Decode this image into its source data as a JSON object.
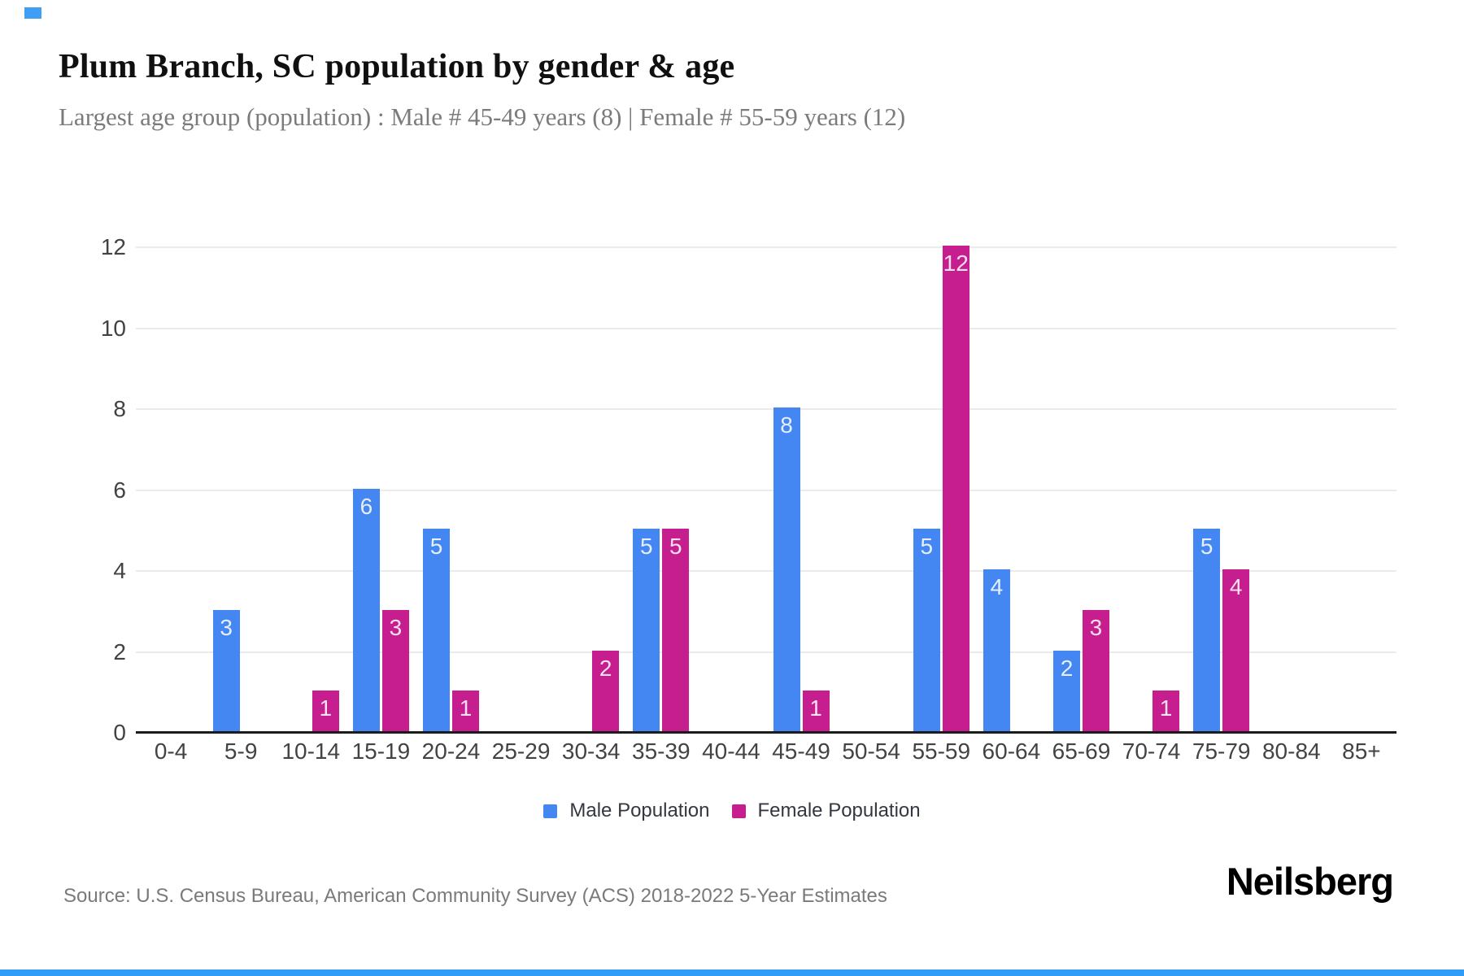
{
  "page": {
    "title": "Plum Branch, SC population by gender & age",
    "subtitle": "Largest age group (population) : Male # 45-49 years (8) | Female # 55-59 years (12)",
    "source": "Source: U.S. Census Bureau, American Community Survey (ACS) 2018-2022 5-Year Estimates",
    "brand": "Neilsberg"
  },
  "chart_data": {
    "type": "bar",
    "title": "Plum Branch, SC population by gender & age",
    "subtitle": "Largest age group (population) : Male # 45-49 years (8) | Female # 55-59 years (12)",
    "categories": [
      "0-4",
      "5-9",
      "10-14",
      "15-19",
      "20-24",
      "25-29",
      "30-34",
      "35-39",
      "40-44",
      "45-49",
      "50-54",
      "55-59",
      "60-64",
      "65-69",
      "70-74",
      "75-79",
      "80-84",
      "85+"
    ],
    "series": [
      {
        "name": "Male Population",
        "color": "#4486f2",
        "values": [
          0,
          3,
          0,
          6,
          5,
          0,
          0,
          5,
          0,
          8,
          0,
          5,
          4,
          2,
          0,
          5,
          0,
          0
        ]
      },
      {
        "name": "Female Population",
        "color": "#c61d8f",
        "values": [
          0,
          0,
          1,
          3,
          1,
          0,
          2,
          5,
          0,
          1,
          0,
          12,
          0,
          3,
          1,
          4,
          0,
          0
        ]
      }
    ],
    "xlabel": "",
    "ylabel": "",
    "ylim": [
      0,
      12
    ],
    "yticks": [
      0,
      2,
      4,
      6,
      8,
      10,
      12
    ],
    "grid": "horizontal",
    "legend_position": "bottom",
    "value_labels": "inside bar top, white, shown only for non-zero bars",
    "colors": {
      "male": "#4486f2",
      "female": "#c61d8f",
      "gridline": "#ebebeb",
      "axis_line": "#1c1c1c",
      "tick_text": "#424242",
      "title_text": "#101010",
      "subtitle_text": "#7b7b7b",
      "source_text": "#7a7a7a"
    }
  }
}
